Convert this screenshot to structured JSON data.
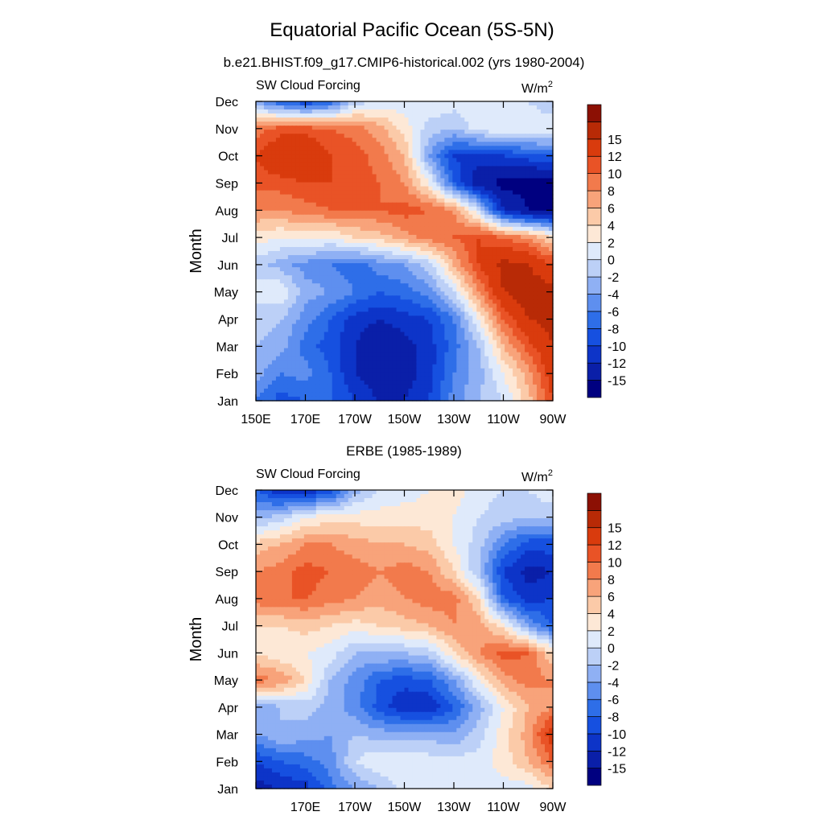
{
  "figure": {
    "title": "Equatorial Pacific Ocean (5S-5N)",
    "subtitle_top": "b.e21.BHIST.f09_g17.CMIP6-historical.002 (yrs 1980-2004)",
    "subtitle_bottom": "ERBE (1985-1989)"
  },
  "colorbar": {
    "colors": [
      "#000080",
      "#0a1fa8",
      "#0d34c8",
      "#1650e0",
      "#2e6ee8",
      "#5e8fef",
      "#8fb0f4",
      "#bcd0f7",
      "#dfeafb",
      "#fde8d6",
      "#fbcaa8",
      "#f8a37a",
      "#f27a4c",
      "#e95326",
      "#d93b0d",
      "#b82a06",
      "#8c1004"
    ],
    "labels": [
      "-15",
      "-12",
      "-10",
      "-8",
      "-6",
      "-4",
      "-2",
      "0",
      "2",
      "4",
      "6",
      "8",
      "10",
      "12",
      "15"
    ],
    "levels": [
      -15,
      -12,
      -10,
      -8,
      -6,
      -4,
      -2,
      0,
      2,
      4,
      6,
      8,
      10,
      12,
      15
    ]
  },
  "chart_data": [
    {
      "type": "heatmap",
      "title": "b.e21.BHIST.f09_g17.CMIP6-historical.002 (yrs 1980-2004)",
      "left_label": "SW Cloud Forcing",
      "units": "W/m",
      "units_sup": "2",
      "ylabel": "Month",
      "xlabel": "",
      "x": [
        150,
        160,
        170,
        180,
        190,
        200,
        210,
        220,
        230,
        240,
        250,
        260,
        270
      ],
      "y": [
        "Jan",
        "Feb",
        "Mar",
        "Apr",
        "May",
        "Jun",
        "Jul",
        "Aug",
        "Sep",
        "Oct",
        "Nov",
        "Dec"
      ],
      "xtick_labels": [
        "150E",
        "170E",
        "170W",
        "150W",
        "130W",
        "110W",
        "90W"
      ],
      "ytick_labels": [
        "Jan",
        "Feb",
        "Mar",
        "Apr",
        "May",
        "Jun",
        "Jul",
        "Aug",
        "Sep",
        "Oct",
        "Nov",
        "Dec"
      ],
      "values": [
        [
          -6,
          -9,
          -8,
          -8,
          -10,
          -12,
          -12,
          -10,
          -5,
          -2,
          0,
          5,
          12
        ],
        [
          -3,
          -6,
          -5,
          -8,
          -12,
          -14,
          -13,
          -11,
          -6,
          -3,
          2,
          7,
          14
        ],
        [
          -2,
          -3,
          -7,
          -9,
          -12,
          -14,
          -13,
          -11,
          -7,
          -2,
          6,
          11,
          15
        ],
        [
          -1,
          -2,
          -5,
          -8,
          -11,
          -12,
          -11,
          -10,
          -6,
          2,
          10,
          15,
          16
        ],
        [
          1,
          2,
          -3,
          -4,
          -6,
          -8,
          -7,
          -5,
          0,
          8,
          15,
          17,
          16
        ],
        [
          -1,
          -3,
          -5,
          -6,
          -7,
          -5,
          -4,
          -1,
          6,
          12,
          16,
          15,
          12
        ],
        [
          3,
          2,
          3,
          2,
          4,
          5,
          7,
          9,
          10,
          12,
          10,
          8,
          4
        ],
        [
          8,
          8,
          9,
          10,
          10,
          10,
          11,
          10,
          8,
          0,
          -12,
          -15,
          -16
        ],
        [
          11,
          11,
          12,
          12,
          11,
          10,
          8,
          2,
          -8,
          -14,
          -16,
          -16,
          -16
        ],
        [
          12,
          15,
          15,
          12,
          11,
          9,
          6,
          -4,
          -10,
          -11,
          -10,
          -9,
          -8
        ],
        [
          9,
          11,
          11,
          10,
          9,
          7,
          3,
          -1,
          -2,
          1,
          2,
          2,
          2
        ],
        [
          -4,
          -8,
          -10,
          -8,
          -1,
          0,
          1,
          2,
          1,
          2,
          1,
          0,
          -2
        ]
      ]
    },
    {
      "type": "heatmap",
      "title": "ERBE (1985-1989)",
      "left_label": "SW Cloud Forcing",
      "units": "W/m",
      "units_sup": "2",
      "ylabel": "Month",
      "xlabel": "",
      "x": [
        150,
        160,
        170,
        180,
        190,
        200,
        210,
        220,
        230,
        240,
        250,
        260,
        270
      ],
      "y": [
        "Jan",
        "Feb",
        "Mar",
        "Apr",
        "May",
        "Jun",
        "Jul",
        "Aug",
        "Sep",
        "Oct",
        "Nov",
        "Dec"
      ],
      "xtick_labels": [
        "170E",
        "170W",
        "150W",
        "130W",
        "110W",
        "90W"
      ],
      "ytick_labels": [
        "Jan",
        "Feb",
        "Mar",
        "Apr",
        "May",
        "Jun",
        "Jul",
        "Aug",
        "Sep",
        "Oct",
        "Nov",
        "Dec"
      ],
      "values": [
        [
          -13,
          -12,
          -11,
          -7,
          -4,
          -2,
          1,
          2,
          2,
          1,
          1,
          1,
          4
        ],
        [
          -10,
          -8,
          -7,
          -5,
          0,
          2,
          2,
          1,
          1,
          1,
          3,
          6,
          10
        ],
        [
          -4,
          -2,
          -3,
          -4,
          -2,
          -3,
          -3,
          -3,
          -4,
          -1,
          3,
          7,
          14
        ],
        [
          -4,
          -2,
          -1,
          -3,
          -5,
          -9,
          -12,
          -12,
          -8,
          -3,
          2,
          6,
          8
        ],
        [
          9,
          8,
          4,
          -2,
          -5,
          -8,
          -9,
          -8,
          -4,
          2,
          7,
          9,
          8
        ],
        [
          4,
          2,
          2,
          1,
          -2,
          -2,
          -2,
          -1,
          4,
          8,
          11,
          10,
          4
        ],
        [
          4,
          4,
          5,
          4,
          3,
          4,
          5,
          6,
          8,
          7,
          3,
          -4,
          -8
        ],
        [
          9,
          10,
          10,
          9,
          8,
          7,
          8,
          9,
          9,
          4,
          -8,
          -11,
          -10
        ],
        [
          8,
          9,
          11,
          10,
          9,
          8,
          9,
          8,
          4,
          -2,
          -10,
          -13,
          -12
        ],
        [
          5,
          6,
          8,
          8,
          7,
          6,
          6,
          5,
          2,
          -1,
          -6,
          -9,
          -9
        ],
        [
          -3,
          -1,
          2,
          3,
          3,
          3,
          3,
          3,
          2,
          0,
          -1,
          -2,
          -2
        ],
        [
          -8,
          -12,
          -12,
          -10,
          -3,
          0,
          1,
          2,
          3,
          1,
          0,
          0,
          2
        ]
      ]
    }
  ]
}
